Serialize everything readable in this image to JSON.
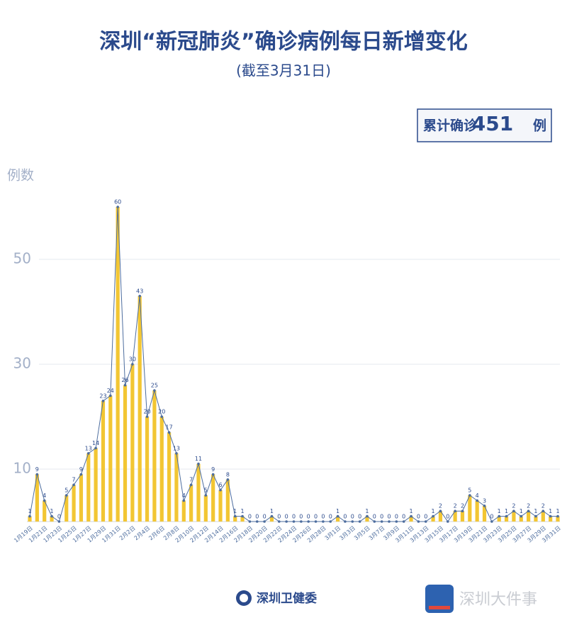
{
  "chart_data": {
    "type": "bar_line",
    "title": "深圳“新冠肺炎”确诊病例每日新增变化",
    "subtitle": "(截至3月31日)",
    "summary": {
      "label": "累计确诊",
      "value": 451,
      "unit": "例"
    },
    "y_label": "例数",
    "categories": [
      "1月19日",
      null,
      "1月21日",
      null,
      "1月23日",
      null,
      "1月25日",
      null,
      "1月27日",
      null,
      "1月29日",
      null,
      "1月31日",
      null,
      "2月2日",
      null,
      "2月4日",
      null,
      "2月6日",
      null,
      "2月8日",
      null,
      "2月10日",
      null,
      "2月12日",
      null,
      "2月14日",
      null,
      "2月16日",
      null,
      "2月18日",
      null,
      "2月20日",
      null,
      "2月22日",
      null,
      "2月24日",
      null,
      "2月26日",
      null,
      "2月28日",
      null,
      "3月1日",
      null,
      "3月3日",
      null,
      "3月5日",
      null,
      "3月7日",
      null,
      "3月9日",
      null,
      "3月11日",
      null,
      "3月13日",
      null,
      "3月15日",
      null,
      "3月17日",
      null,
      "3月19日",
      null,
      "3月21日",
      null,
      "3月23日",
      null,
      "3月25日",
      null,
      "3月27日",
      null,
      "3月29日",
      null,
      "3月31日"
    ],
    "values": [
      1,
      9,
      4,
      1,
      0,
      5,
      7,
      9,
      13,
      14,
      23,
      24,
      60,
      26,
      30,
      43,
      20,
      25,
      20,
      17,
      13,
      4,
      7,
      11,
      5,
      9,
      6,
      8,
      1,
      1,
      0,
      0,
      0,
      1,
      0,
      0,
      0,
      0,
      0,
      0,
      0,
      0,
      1,
      0,
      0,
      0,
      1,
      0,
      0,
      0,
      0,
      0,
      1,
      0,
      0,
      1,
      2,
      0,
      2,
      2,
      5,
      4,
      3,
      0,
      1,
      1,
      2,
      1,
      2,
      1,
      2,
      1,
      1
    ],
    "bar_color": "#f2c633",
    "line_color": "#4d6d9e",
    "ylim": [
      0,
      60
    ],
    "yticks": [
      10,
      30,
      50
    ],
    "grid": true,
    "footer": {
      "source": "深圳卫健委",
      "watermark": "深圳大件事"
    }
  }
}
